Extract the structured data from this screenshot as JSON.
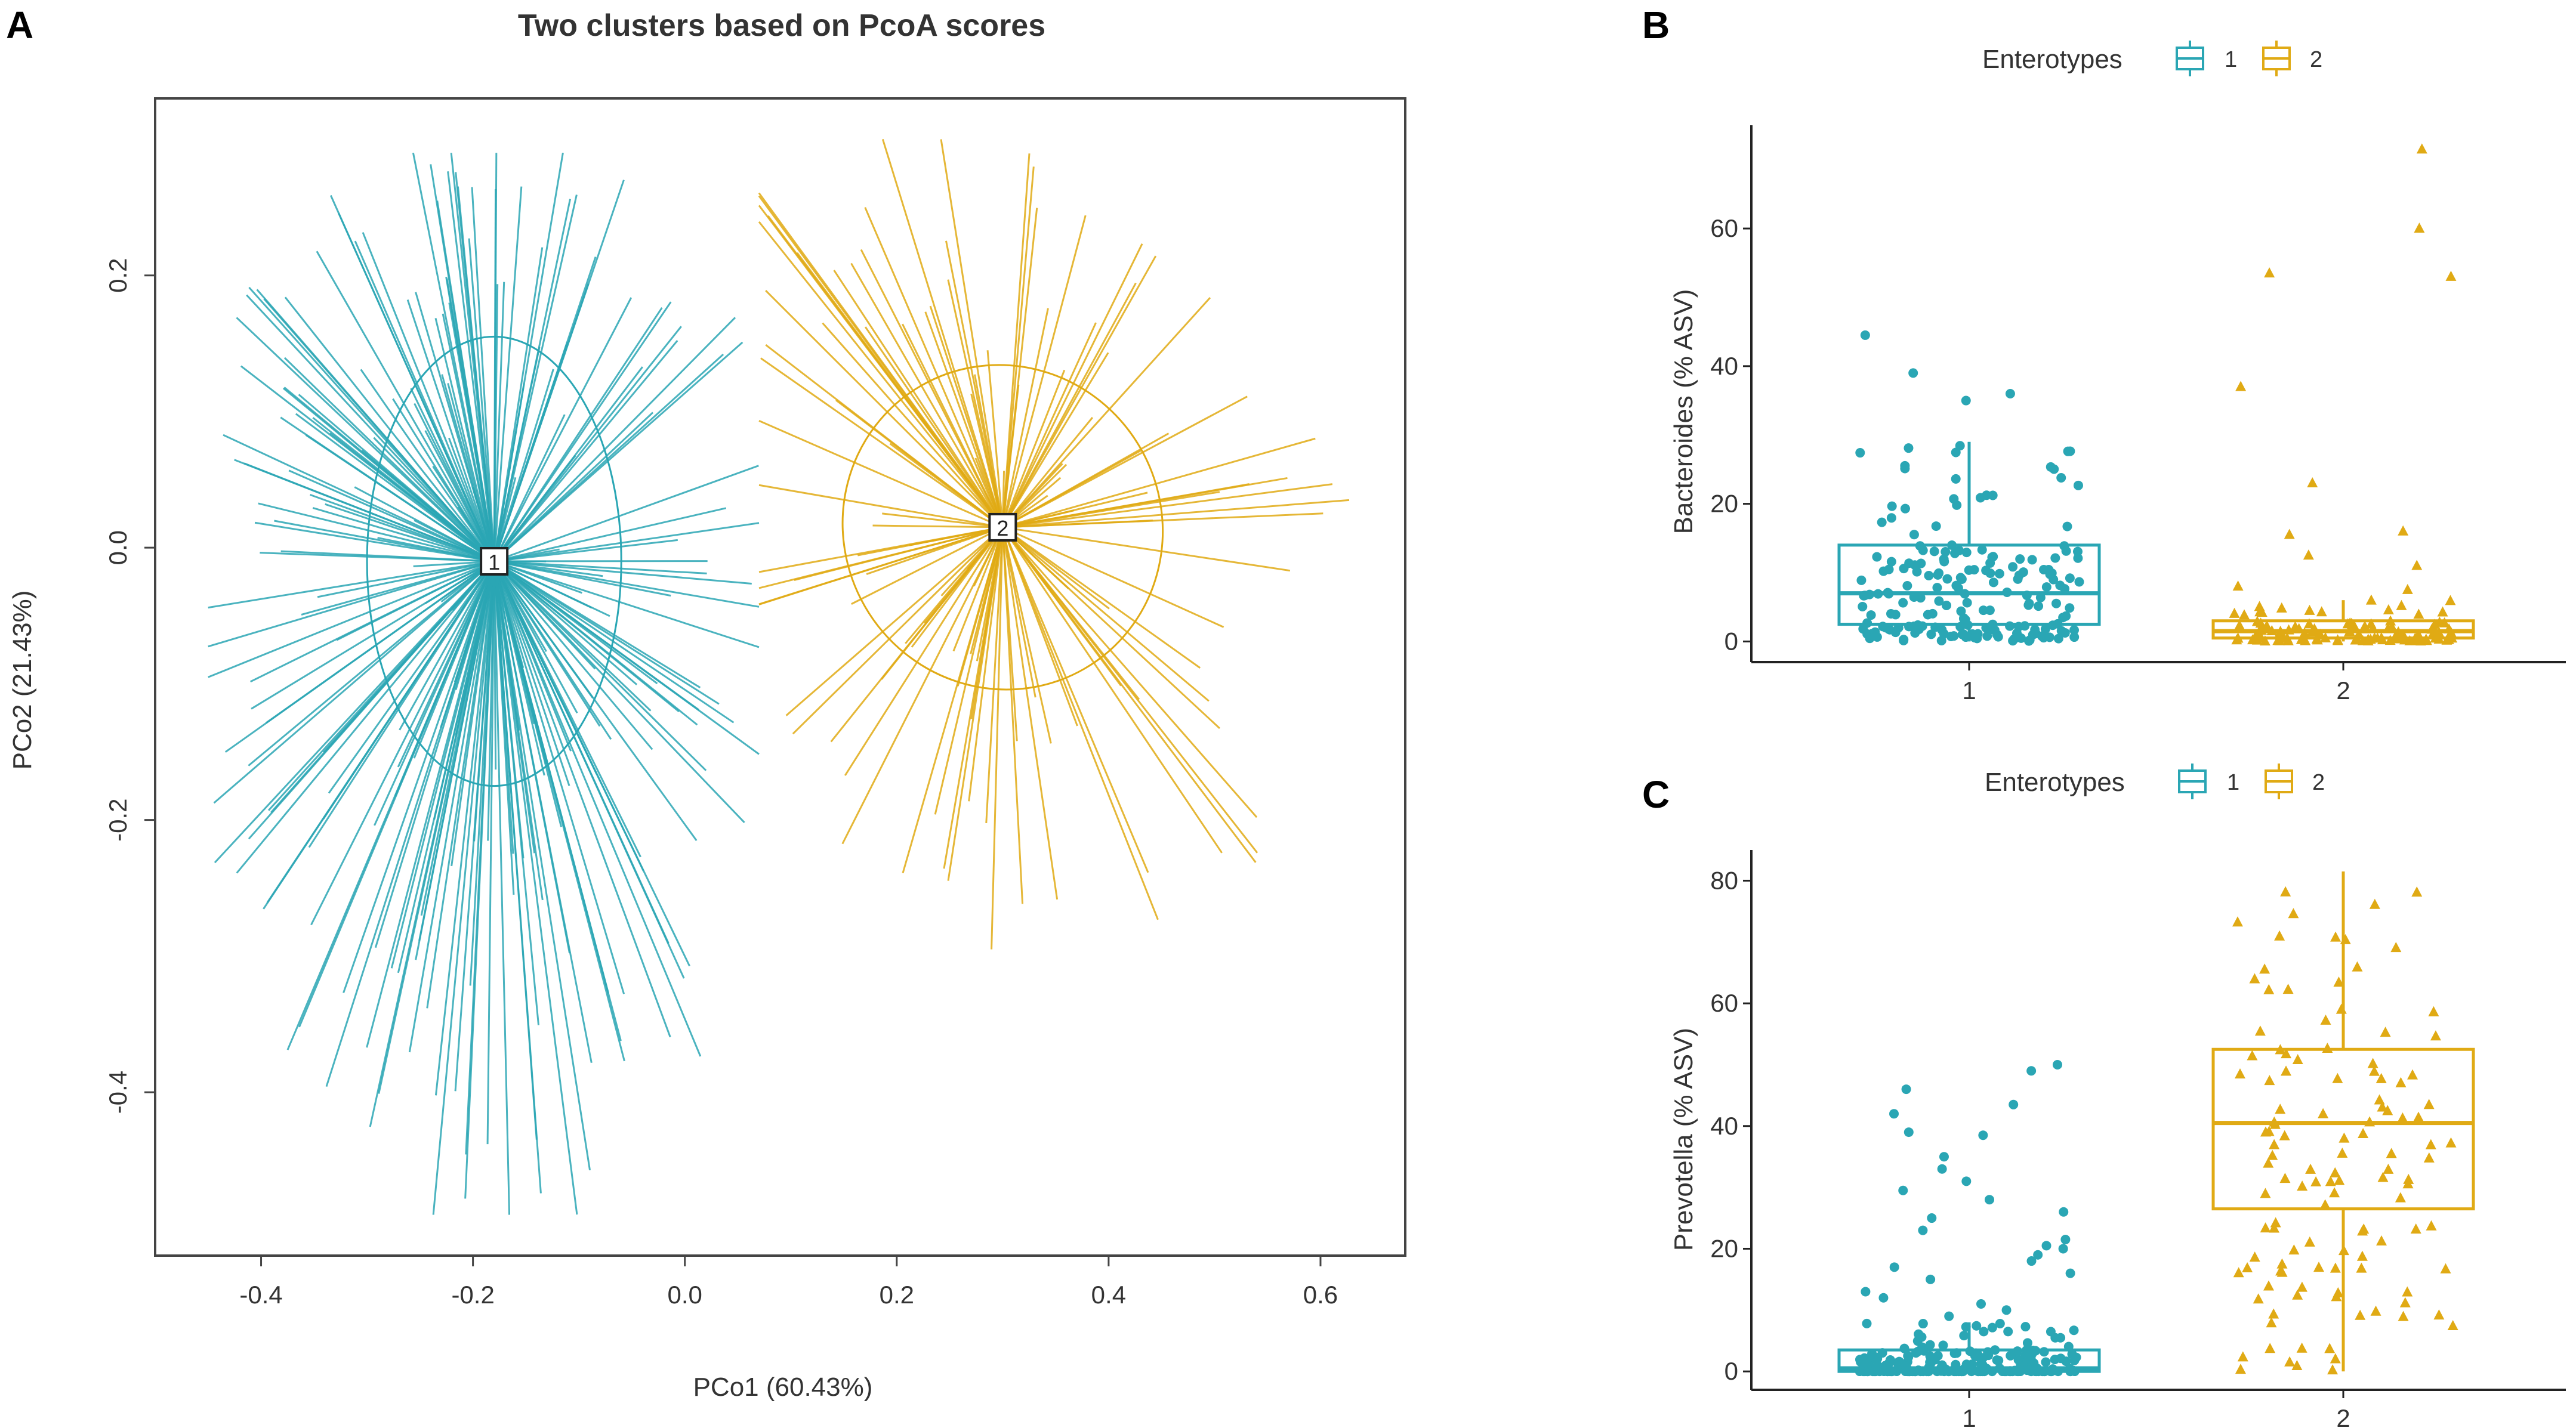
{
  "colors": {
    "cluster1": "#2aa6b4",
    "cluster2": "#e0aa14",
    "axis": "#222222",
    "frame": "#444444"
  },
  "panel_labels": {
    "a": "A",
    "b": "B",
    "c": "C"
  },
  "chart_data": [
    {
      "id": "A",
      "type": "scatter",
      "title": "Two clusters based on PcoA scores",
      "xlabel": "PCo1 (60.43%)",
      "ylabel": "PCo2 (21.43%)",
      "xlim": [
        -0.5,
        0.68
      ],
      "ylim": [
        -0.52,
        0.33
      ],
      "xticks": [
        -0.4,
        -0.2,
        0.0,
        0.2,
        0.4,
        0.6
      ],
      "xtick_labels": [
        "-0.4",
        "-0.2",
        "0.0",
        "0.2",
        "0.4",
        "0.6"
      ],
      "yticks": [
        -0.4,
        -0.2,
        0.0,
        0.2
      ],
      "ytick_labels": [
        "-0.4",
        "-0.2",
        "0.0",
        "0.2"
      ],
      "grid": false,
      "series": [
        {
          "name": "1",
          "color_key": "cluster1",
          "centroid": [
            -0.18,
            -0.01
          ],
          "ellipse": {
            "rx": 0.12,
            "ry": 0.165
          },
          "n_points": 230,
          "spread_x": [
            -0.45,
            0.07
          ],
          "spread_y": [
            -0.49,
            0.29
          ]
        },
        {
          "name": "2",
          "color_key": "cluster2",
          "centroid": [
            0.3,
            0.015
          ],
          "ellipse": {
            "rx": 0.15,
            "ry": 0.12,
            "angle_deg": -30
          },
          "n_points": 120,
          "spread_x": [
            0.07,
            0.65
          ],
          "spread_y": [
            -0.3,
            0.3
          ]
        }
      ],
      "centroid_labels": [
        "1",
        "2"
      ]
    },
    {
      "id": "B",
      "type": "box",
      "legend": {
        "title": "Enterotypes",
        "labels": [
          "1",
          "2"
        ],
        "position": "top"
      },
      "ylabel": "Bacteroides (% ASV)",
      "categories": [
        "1",
        "2"
      ],
      "ylim": [
        -3,
        75
      ],
      "yticks": [
        0,
        20,
        40,
        60
      ],
      "ytick_labels": [
        "0",
        "20",
        "40",
        "60"
      ],
      "boxes": [
        {
          "group": "1",
          "q1": 2.5,
          "median": 7,
          "q3": 14,
          "whisker_low": 0,
          "whisker_high": 29,
          "color_key": "cluster1",
          "marker": "circle",
          "n_points": 190
        },
        {
          "group": "2",
          "q1": 0.5,
          "median": 1.5,
          "q3": 3,
          "whisker_low": 0,
          "whisker_high": 6,
          "color_key": "cluster2",
          "marker": "triangle",
          "n_points": 110
        }
      ],
      "outliers": {
        "1": [
          44.5,
          39,
          36,
          35
        ],
        "2": [
          71.5,
          60,
          53.5,
          53,
          37,
          23,
          16,
          15.5,
          12.5,
          11,
          8,
          7.5
        ]
      }
    },
    {
      "id": "C",
      "type": "box",
      "legend": {
        "title": "Enterotypes",
        "labels": [
          "1",
          "2"
        ],
        "position": "top"
      },
      "ylabel": "Prevotella (% ASV)",
      "categories": [
        "1",
        "2"
      ],
      "ylim": [
        -3,
        85
      ],
      "yticks": [
        0,
        20,
        40,
        60,
        80
      ],
      "ytick_labels": [
        "0",
        "20",
        "40",
        "60",
        "80"
      ],
      "boxes": [
        {
          "group": "1",
          "q1": 0,
          "median": 0.5,
          "q3": 3.5,
          "whisker_low": 0,
          "whisker_high": 8,
          "color_key": "cluster1",
          "marker": "circle",
          "n_points": 190
        },
        {
          "group": "2",
          "q1": 26.5,
          "median": 40.5,
          "q3": 52.5,
          "whisker_low": 0,
          "whisker_high": 81.5,
          "color_key": "cluster2",
          "marker": "triangle",
          "n_points": 120
        }
      ],
      "outliers": {
        "1": [
          50,
          49,
          46,
          43.5,
          42,
          39,
          38.5,
          35,
          33,
          31,
          29.5,
          28,
          26,
          25,
          23,
          21.5,
          20.5,
          20,
          19,
          18,
          17,
          16,
          15,
          13,
          12,
          11,
          10,
          9
        ],
        "2": []
      }
    }
  ]
}
